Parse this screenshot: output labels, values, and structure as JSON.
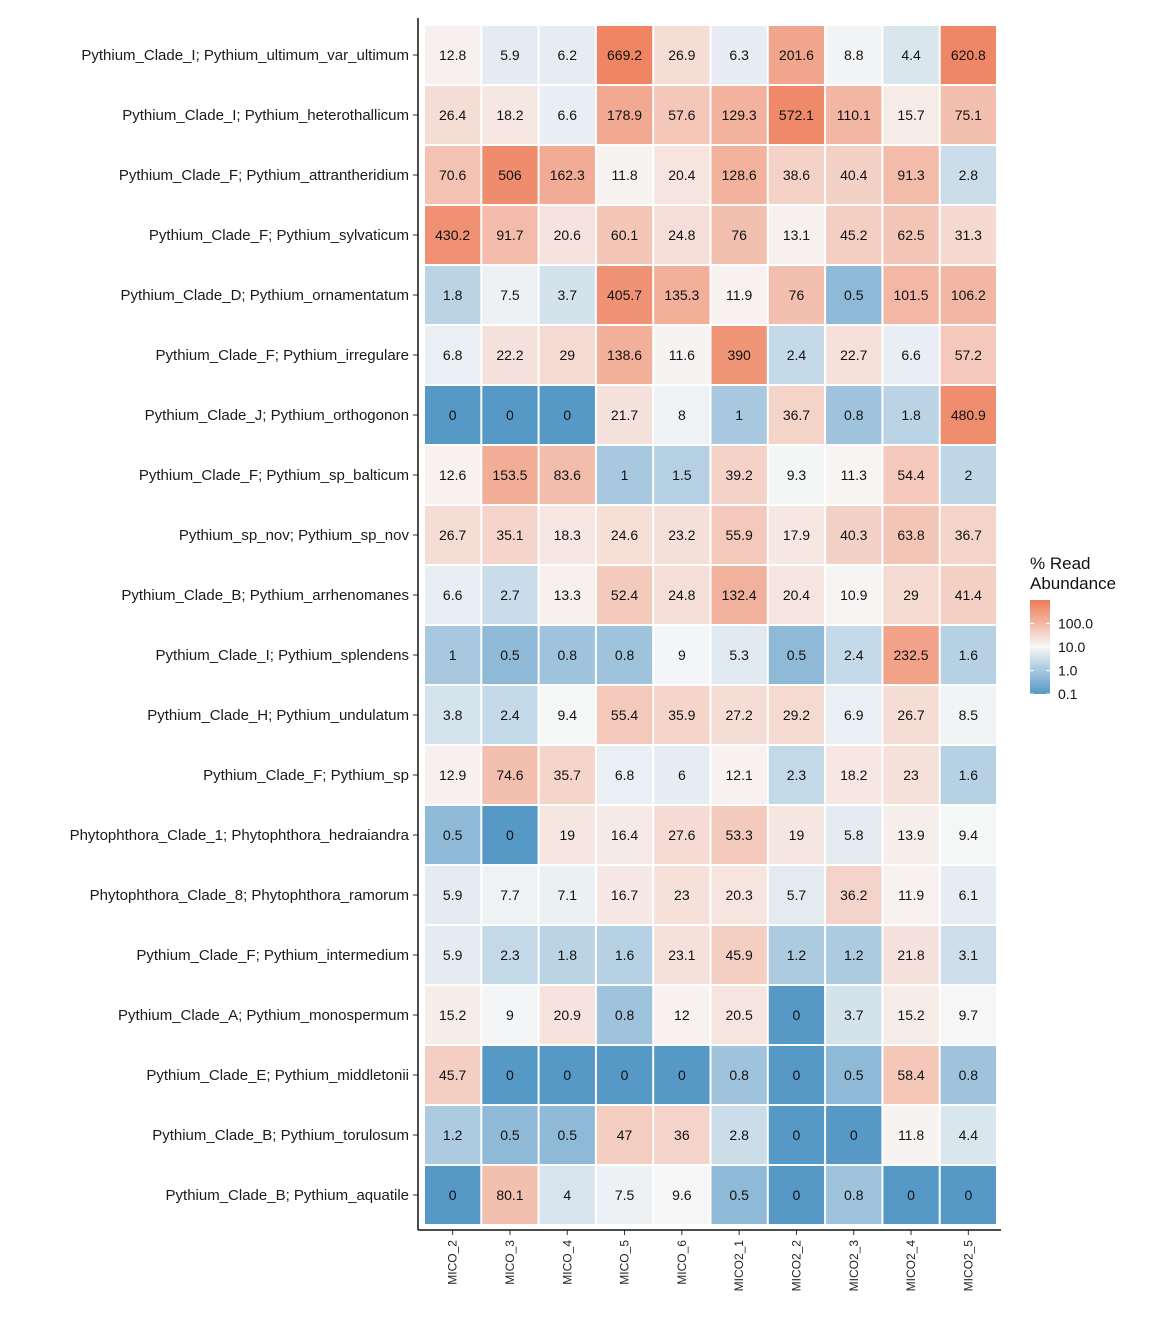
{
  "chart_data": {
    "type": "heatmap",
    "title": "",
    "xlabel": "",
    "ylabel": "",
    "columns": [
      "MICO_2",
      "MICO_3",
      "MICO_4",
      "MICO_5",
      "MICO_6",
      "MICO2_1",
      "MICO2_2",
      "MICO2_3",
      "MICO2_4",
      "MICO2_5"
    ],
    "rows": [
      "Pythium_Clade_I; Pythium_ultimum_var_ultimum",
      "Pythium_Clade_I; Pythium_heterothallicum",
      "Pythium_Clade_F; Pythium_attrantheridium",
      "Pythium_Clade_F; Pythium_sylvaticum",
      "Pythium_Clade_D; Pythium_ornamentatum",
      "Pythium_Clade_F; Pythium_irregulare",
      "Pythium_Clade_J; Pythium_orthogonon",
      "Pythium_Clade_F; Pythium_sp_balticum",
      "Pythium_sp_nov; Pythium_sp_nov",
      "Pythium_Clade_B; Pythium_arrhenomanes",
      "Pythium_Clade_I; Pythium_splendens",
      "Pythium_Clade_H; Pythium_undulatum",
      "Pythium_Clade_F; Pythium_sp",
      "Phytophthora_Clade_1; Phytophthora_hedraiandra",
      "Phytophthora_Clade_8; Phytophthora_ramorum",
      "Pythium_Clade_F; Pythium_intermedium",
      "Pythium_Clade_A; Pythium_monospermum",
      "Pythium_Clade_E; Pythium_middletonii",
      "Pythium_Clade_B; Pythium_torulosum",
      "Pythium_Clade_B; Pythium_aquatile"
    ],
    "values": [
      [
        12.8,
        5.9,
        6.2,
        669.2,
        26.9,
        6.3,
        201.6,
        8.8,
        4.4,
        620.8
      ],
      [
        26.4,
        18.2,
        6.6,
        178.9,
        57.6,
        129.3,
        572.1,
        110.1,
        15.7,
        75.1
      ],
      [
        70.6,
        506,
        162.3,
        11.8,
        20.4,
        128.6,
        38.6,
        40.4,
        91.3,
        2.8
      ],
      [
        430.2,
        91.7,
        20.6,
        60.1,
        24.8,
        76,
        13.1,
        45.2,
        62.5,
        31.3
      ],
      [
        1.8,
        7.5,
        3.7,
        405.7,
        135.3,
        11.9,
        76,
        0.5,
        101.5,
        106.2
      ],
      [
        6.8,
        22.2,
        29,
        138.6,
        11.6,
        390,
        2.4,
        22.7,
        6.6,
        57.2
      ],
      [
        0,
        0,
        0,
        21.7,
        8,
        1,
        36.7,
        0.8,
        1.8,
        480.9
      ],
      [
        12.6,
        153.5,
        83.6,
        1,
        1.5,
        39.2,
        9.3,
        11.3,
        54.4,
        2
      ],
      [
        26.7,
        35.1,
        18.3,
        24.6,
        23.2,
        55.9,
        17.9,
        40.3,
        63.8,
        36.7
      ],
      [
        6.6,
        2.7,
        13.3,
        52.4,
        24.8,
        132.4,
        20.4,
        10.9,
        29,
        41.4
      ],
      [
        1,
        0.5,
        0.8,
        0.8,
        9,
        5.3,
        0.5,
        2.4,
        232.5,
        1.6
      ],
      [
        3.8,
        2.4,
        9.4,
        55.4,
        35.9,
        27.2,
        29.2,
        6.9,
        26.7,
        8.5
      ],
      [
        12.9,
        74.6,
        35.7,
        6.8,
        6,
        12.1,
        2.3,
        18.2,
        23,
        1.6
      ],
      [
        0.5,
        0,
        19,
        16.4,
        27.6,
        53.3,
        19,
        5.8,
        13.9,
        9.4
      ],
      [
        5.9,
        7.7,
        7.1,
        16.7,
        23,
        20.3,
        5.7,
        36.2,
        11.9,
        6.1
      ],
      [
        5.9,
        2.3,
        1.8,
        1.6,
        23.1,
        45.9,
        1.2,
        1.2,
        21.8,
        3.1
      ],
      [
        15.2,
        9,
        20.9,
        0.8,
        12,
        20.5,
        0,
        3.7,
        15.2,
        9.7
      ],
      [
        45.7,
        0,
        0,
        0,
        0,
        0.8,
        0,
        0.5,
        58.4,
        0.8
      ],
      [
        1.2,
        0.5,
        0.5,
        47,
        36,
        2.8,
        0,
        0,
        11.8,
        4.4
      ],
      [
        0,
        80.1,
        4,
        7.5,
        9.6,
        0.5,
        0,
        0.8,
        0,
        0
      ]
    ],
    "color_scale": {
      "type": "log",
      "low_color": "#5698c6",
      "mid_color": "#f7f7f7",
      "high_color": "#ee7a55",
      "domain": [
        0.1,
        1000
      ],
      "midpoint": 10
    },
    "legend": {
      "title_lines": [
        "% Read",
        "Abundance"
      ],
      "ticks": [
        {
          "value": 100,
          "label": "100.0"
        },
        {
          "value": 10,
          "label": "10.0"
        },
        {
          "value": 1,
          "label": "1.0"
        },
        {
          "value": 0.1,
          "label": "0.1"
        }
      ],
      "placement": "right"
    }
  }
}
